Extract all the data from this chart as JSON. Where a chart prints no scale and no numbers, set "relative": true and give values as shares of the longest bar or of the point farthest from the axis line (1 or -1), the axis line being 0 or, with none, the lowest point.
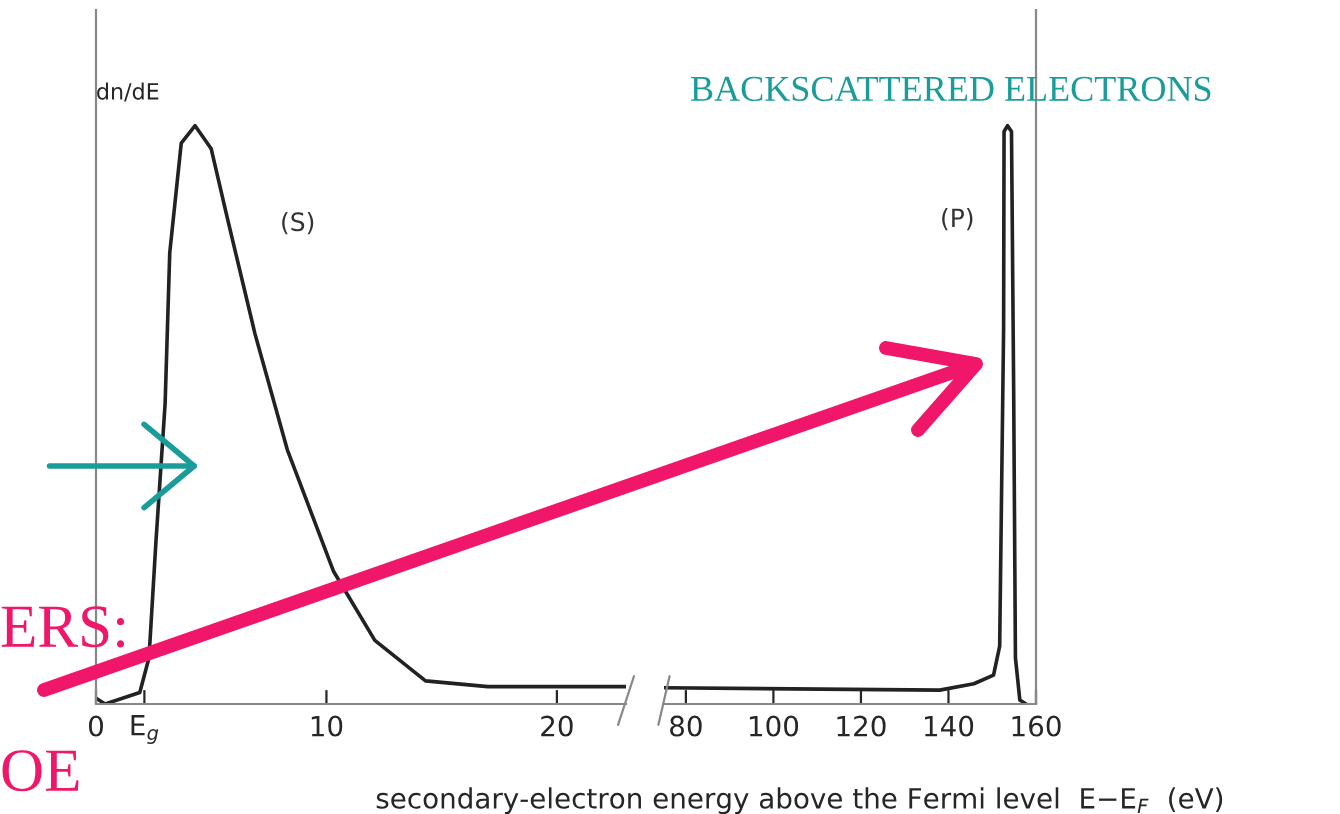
{
  "chart_data": [
    {
      "type": "line",
      "relative": true,
      "ylabel": "dn/dE",
      "xlabel": "secondary-electron energy above the Fermi level  E−E$_{F}$  (eV)",
      "xlim": [
        0,
        23
      ],
      "xticks": [
        0,
        {
          "value": 2.1,
          "label": "E$_{g}$"
        },
        10,
        20
      ],
      "series": [
        {
          "color": "#222222",
          "x": [
            0,
            0.4,
            1.9,
            2.3,
            2.6,
            3.0,
            3.2,
            3.7,
            4.3,
            5.0,
            5.7,
            6.9,
            8.3,
            10.3,
            12.1,
            14.3,
            17,
            20,
            23
          ],
          "values": [
            0.01,
            0,
            0.02,
            0.08,
            0.28,
            0.52,
            0.78,
            0.97,
            1.0,
            0.96,
            0.84,
            0.64,
            0.44,
            0.23,
            0.11,
            0.04,
            0.03,
            0.03,
            0.03
          ]
        }
      ],
      "annotations": [
        "(S)",
        "ERS:",
        "OE"
      ],
      "grid": false,
      "legend": false,
      "marker": "none",
      "line_style": "solid"
    },
    {
      "type": "line",
      "relative": true,
      "xlim": [
        75,
        160
      ],
      "xticks": [
        80,
        100,
        120,
        140,
        160
      ],
      "series": [
        {
          "color": "#222222",
          "x": [
            75,
            138,
            145.8,
            150.3,
            151.7,
            152.6,
            152.7,
            153.5,
            154.4,
            154.9,
            155.3,
            156.3,
            157.7
          ],
          "values": [
            0.028,
            0.024,
            0.035,
            0.05,
            0.1,
            0.65,
            0.99,
            1.0,
            0.99,
            0.54,
            0.08,
            0.007,
            0
          ]
        }
      ],
      "annotations": [
        "(P)",
        "BACKSCATTERED ELECTRONS"
      ],
      "grid": false,
      "legend": false,
      "marker": "none",
      "line_style": "solid"
    }
  ]
}
